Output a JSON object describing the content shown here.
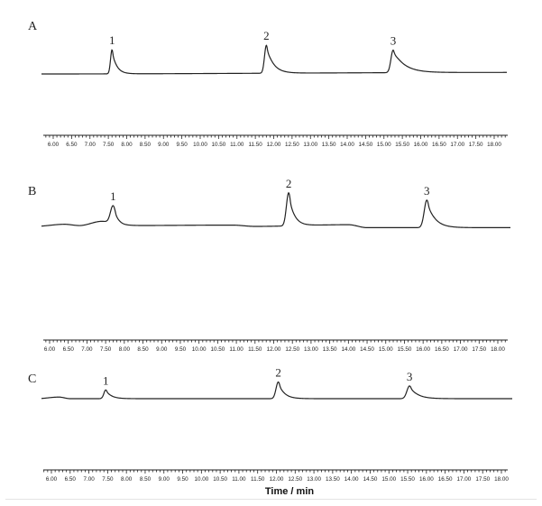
{
  "chart_data": {
    "type": "line",
    "x_range": [
      6.0,
      18.0
    ],
    "tick_labels": [
      "6.00",
      "6.50",
      "7.00",
      "7.50",
      "8.00",
      "8.50",
      "9.00",
      "9.50",
      "10.00",
      "10.50",
      "11.00",
      "11.50",
      "12.00",
      "12.50",
      "13.00",
      "13.50",
      "14.00",
      "14.50",
      "15.00",
      "15.50",
      "16.00",
      "16.50",
      "17.00",
      "17.50",
      "18.00"
    ],
    "xlabel": "Time / min",
    "panels": [
      {
        "label": "A",
        "baseline_drift": [
          [
            5.6,
            0.0
          ],
          [
            18.7,
            0.04
          ]
        ],
        "peaks": [
          {
            "label": "1",
            "rt": 7.6,
            "height": 0.62,
            "sigma_left": 0.04,
            "tail": 0.12
          },
          {
            "label": "2",
            "rt": 11.8,
            "height": 0.72,
            "sigma_left": 0.05,
            "tail": 0.18
          },
          {
            "label": "3",
            "rt": 15.25,
            "height": 0.58,
            "sigma_left": 0.06,
            "tail": 0.3
          }
        ]
      },
      {
        "label": "B",
        "baseline_drift": [
          [
            5.6,
            0.0
          ],
          [
            6.4,
            0.05
          ],
          [
            6.8,
            0.02
          ],
          [
            7.4,
            0.12
          ],
          [
            8.0,
            0.02
          ],
          [
            10.9,
            0.03
          ],
          [
            11.5,
            0.0
          ],
          [
            14.0,
            0.04
          ],
          [
            14.5,
            -0.03
          ],
          [
            18.7,
            -0.03
          ]
        ],
        "peaks": [
          {
            "label": "1",
            "rt": 7.7,
            "height": 0.42,
            "sigma_left": 0.07,
            "tail": 0.12
          },
          {
            "label": "2",
            "rt": 12.4,
            "height": 0.78,
            "sigma_left": 0.06,
            "tail": 0.14
          },
          {
            "label": "3",
            "rt": 16.1,
            "height": 0.65,
            "sigma_left": 0.07,
            "tail": 0.2
          }
        ]
      },
      {
        "label": "C",
        "baseline_drift": [
          [
            5.6,
            0.0
          ],
          [
            6.2,
            0.04
          ],
          [
            6.5,
            0.0
          ],
          [
            18.7,
            0.0
          ]
        ],
        "peaks": [
          {
            "label": "1",
            "rt": 7.45,
            "height": 0.22,
            "sigma_left": 0.05,
            "tail": 0.14
          },
          {
            "label": "2",
            "rt": 12.05,
            "height": 0.42,
            "sigma_left": 0.06,
            "tail": 0.15
          },
          {
            "label": "3",
            "rt": 15.55,
            "height": 0.32,
            "sigma_left": 0.07,
            "tail": 0.2
          }
        ]
      }
    ]
  }
}
